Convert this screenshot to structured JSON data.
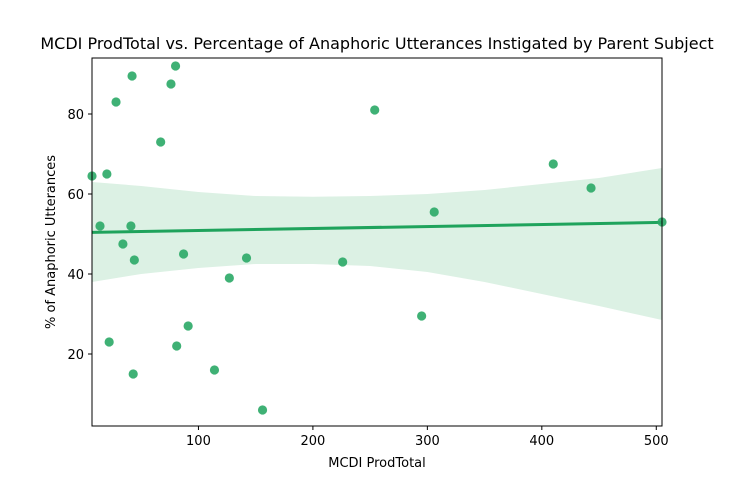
{
  "chart_data": {
    "type": "scatter",
    "title": "MCDI ProdTotal vs. Percentage of Anaphoric Utterances Instigated by Parent Subject",
    "xlabel": "MCDI ProdTotal",
    "ylabel": "% of Anaphoric Utterances",
    "xlim": [
      7,
      505
    ],
    "ylim": [
      2,
      94
    ],
    "xticks": [
      100,
      200,
      300,
      400,
      500
    ],
    "yticks": [
      20,
      40,
      60,
      80
    ],
    "grid": false,
    "legend": "none",
    "colors": {
      "points": "#2aa866",
      "line": "#1fa35c",
      "band": "#dcf1e4"
    },
    "points": [
      {
        "x": 7,
        "y": 64.5
      },
      {
        "x": 14,
        "y": 52
      },
      {
        "x": 20,
        "y": 65
      },
      {
        "x": 22,
        "y": 23
      },
      {
        "x": 28,
        "y": 83
      },
      {
        "x": 34,
        "y": 47.5
      },
      {
        "x": 41,
        "y": 52
      },
      {
        "x": 42,
        "y": 89.5
      },
      {
        "x": 43,
        "y": 15
      },
      {
        "x": 44,
        "y": 43.5
      },
      {
        "x": 67,
        "y": 73
      },
      {
        "x": 76,
        "y": 87.5
      },
      {
        "x": 80,
        "y": 92
      },
      {
        "x": 81,
        "y": 22
      },
      {
        "x": 87,
        "y": 45
      },
      {
        "x": 91,
        "y": 27
      },
      {
        "x": 114,
        "y": 16
      },
      {
        "x": 127,
        "y": 39
      },
      {
        "x": 142,
        "y": 44
      },
      {
        "x": 156,
        "y": 6
      },
      {
        "x": 226,
        "y": 43
      },
      {
        "x": 254,
        "y": 81
      },
      {
        "x": 295,
        "y": 29.5
      },
      {
        "x": 306,
        "y": 55.5
      },
      {
        "x": 410,
        "y": 67.5
      },
      {
        "x": 443,
        "y": 61.5
      },
      {
        "x": 505,
        "y": 53
      }
    ],
    "regression": {
      "x": [
        7,
        505
      ],
      "y": [
        50.4,
        52.9
      ]
    },
    "ci_band": {
      "x": [
        7,
        50,
        100,
        150,
        200,
        250,
        300,
        350,
        400,
        450,
        505
      ],
      "upper": [
        63.0,
        62.0,
        60.5,
        59.5,
        59.3,
        59.5,
        60.0,
        61.0,
        62.5,
        64.0,
        66.5
      ],
      "lower": [
        38.0,
        40.0,
        41.5,
        42.5,
        42.5,
        42.0,
        40.5,
        38.0,
        35.0,
        32.0,
        28.5
      ]
    }
  }
}
